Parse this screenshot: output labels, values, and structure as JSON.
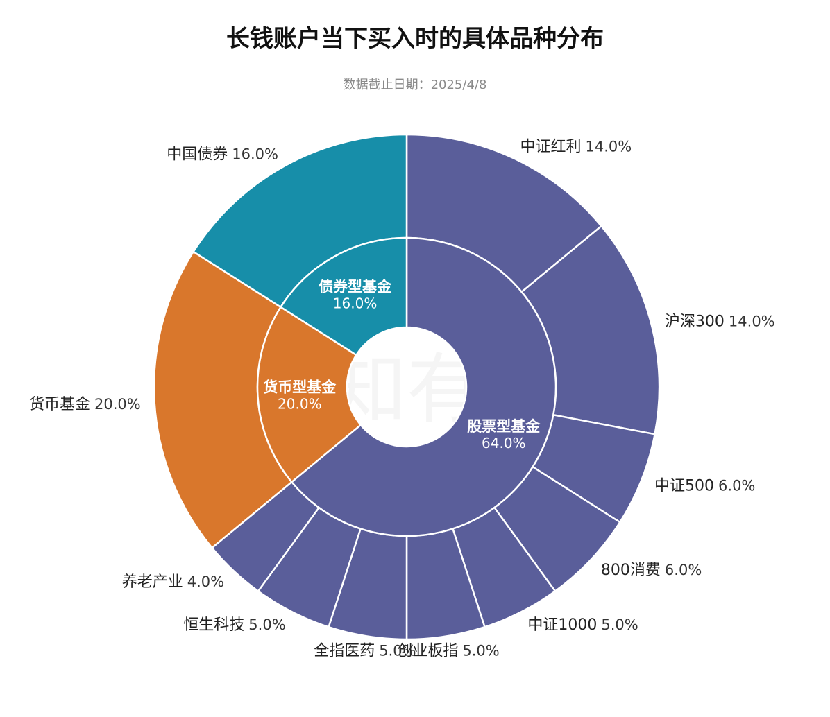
{
  "title": "长钱账户当下买入时的具体品种分布",
  "subtitle": "数据截止日期：2025/4/8",
  "watermark": "有知有行",
  "chart_data": {
    "type": "pie",
    "inner": [
      {
        "name": "股票型基金",
        "value": 64.0,
        "label": "64.0%",
        "color": "#5a5e9a"
      },
      {
        "name": "货币型基金",
        "value": 20.0,
        "label": "20.0%",
        "color": "#d9772c"
      },
      {
        "name": "债券型基金",
        "value": 16.0,
        "label": "16.0%",
        "color": "#178ea9"
      }
    ],
    "outer": [
      {
        "name": "中证红利",
        "value": 14.0,
        "label": "14.0%",
        "parent": "股票型基金",
        "color": "#5a5e9a"
      },
      {
        "name": "沪深300",
        "value": 14.0,
        "label": "14.0%",
        "parent": "股票型基金",
        "color": "#5a5e9a"
      },
      {
        "name": "中证500",
        "value": 6.0,
        "label": "6.0%",
        "parent": "股票型基金",
        "color": "#5a5e9a"
      },
      {
        "name": "800消费",
        "value": 6.0,
        "label": "6.0%",
        "parent": "股票型基金",
        "color": "#5a5e9a"
      },
      {
        "name": "中证1000",
        "value": 5.0,
        "label": "5.0%",
        "parent": "股票型基金",
        "color": "#5a5e9a"
      },
      {
        "name": "创业板指",
        "value": 5.0,
        "label": "5.0%",
        "parent": "股票型基金",
        "color": "#5a5e9a"
      },
      {
        "name": "全指医药",
        "value": 5.0,
        "label": "5.0%",
        "parent": "股票型基金",
        "color": "#5a5e9a"
      },
      {
        "name": "恒生科技",
        "value": 5.0,
        "label": "5.0%",
        "parent": "股票型基金",
        "color": "#5a5e9a"
      },
      {
        "name": "养老产业",
        "value": 4.0,
        "label": "4.0%",
        "parent": "股票型基金",
        "color": "#5a5e9a"
      },
      {
        "name": "货币基金",
        "value": 20.0,
        "label": "20.0%",
        "parent": "货币型基金",
        "color": "#d9772c"
      },
      {
        "name": "中国债券",
        "value": 16.0,
        "label": "16.0%",
        "parent": "债券型基金",
        "color": "#178ea9"
      }
    ]
  }
}
